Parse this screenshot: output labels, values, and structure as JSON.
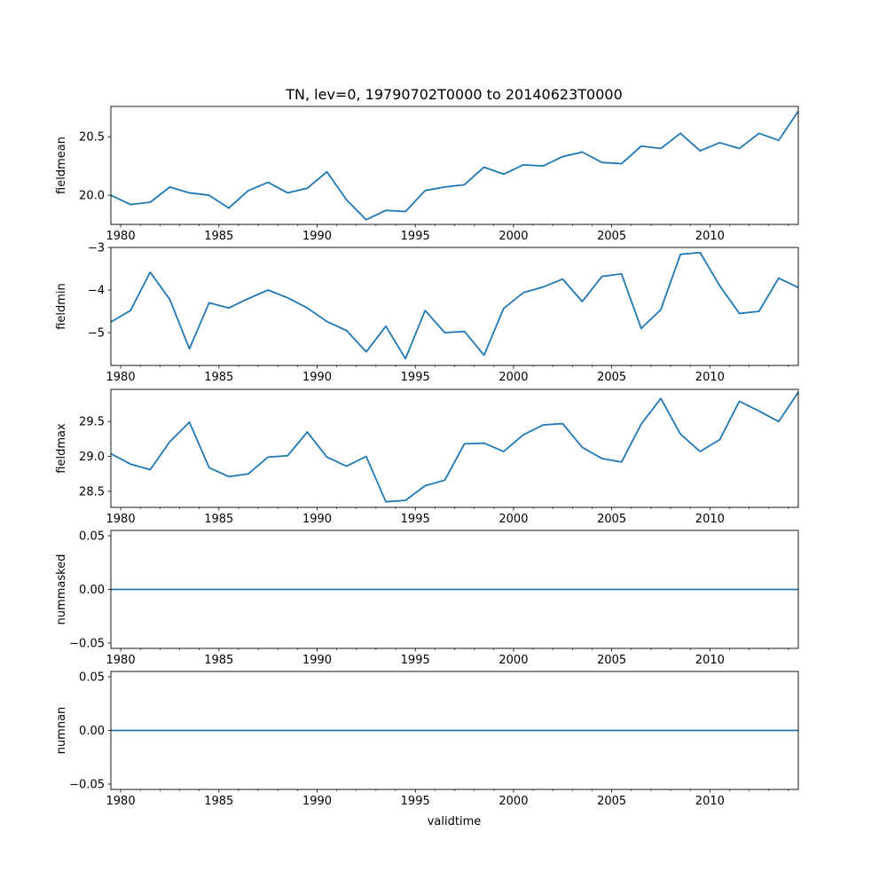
{
  "chart_data": {
    "type": "line",
    "title": "TN, lev=0, 19790702T0000 to 20140623T0000",
    "xlabel": "validtime",
    "xlim": [
      1979.5,
      2014.5
    ],
    "x_major_ticks": [
      1980,
      1985,
      1990,
      1995,
      2000,
      2005,
      2010
    ],
    "x_tick_labels": [
      "1980",
      "1985",
      "1990",
      "1995",
      "2000",
      "2005",
      "2010"
    ],
    "x": [
      1979.5,
      1980.5,
      1981.5,
      1982.5,
      1983.5,
      1984.5,
      1985.5,
      1986.5,
      1987.5,
      1988.5,
      1989.5,
      1990.5,
      1991.5,
      1992.5,
      1993.5,
      1994.5,
      1995.5,
      1996.5,
      1997.5,
      1998.5,
      1999.5,
      2000.5,
      2001.5,
      2002.5,
      2003.5,
      2004.5,
      2005.5,
      2006.5,
      2007.5,
      2008.5,
      2009.5,
      2010.5,
      2011.5,
      2012.5,
      2013.5,
      2014.5
    ],
    "color": "#1f77b4",
    "panels": [
      {
        "ylabel": "fieldmean",
        "ylim": [
          19.75,
          20.76
        ],
        "yticks": [
          20.0,
          20.5
        ],
        "ytick_labels": [
          "20.0",
          "20.5"
        ],
        "values": [
          20.0,
          19.92,
          19.94,
          20.07,
          20.02,
          20.0,
          19.89,
          20.04,
          20.11,
          20.02,
          20.06,
          20.2,
          19.96,
          19.79,
          19.87,
          19.86,
          20.04,
          20.07,
          20.09,
          20.24,
          20.18,
          20.26,
          20.25,
          20.33,
          20.37,
          20.28,
          20.27,
          20.42,
          20.4,
          20.53,
          20.38,
          20.45,
          20.4,
          20.53,
          20.47,
          20.72
        ]
      },
      {
        "ylabel": "fieldmin",
        "ylim": [
          -5.77,
          -3.0
        ],
        "yticks": [
          -5,
          -4,
          -3
        ],
        "ytick_labels": [
          "−5",
          "−4",
          "−3"
        ],
        "values": [
          -4.75,
          -4.48,
          -3.58,
          -4.22,
          -5.38,
          -4.3,
          -4.42,
          -4.2,
          -4.0,
          -4.18,
          -4.42,
          -4.74,
          -4.95,
          -5.45,
          -4.85,
          -5.61,
          -4.48,
          -5.0,
          -4.97,
          -5.53,
          -4.43,
          -4.06,
          -3.93,
          -3.74,
          -4.27,
          -3.68,
          -3.62,
          -4.9,
          -4.46,
          -3.16,
          -3.12,
          -3.9,
          -4.55,
          -4.5,
          -3.72,
          -3.94
        ]
      },
      {
        "ylabel": "fieldmax",
        "ylim": [
          28.27,
          29.96
        ],
        "yticks": [
          28.5,
          29.0,
          29.5
        ],
        "ytick_labels": [
          "28.5",
          "29.0",
          "29.5"
        ],
        "values": [
          29.04,
          28.89,
          28.81,
          29.21,
          29.49,
          28.84,
          28.71,
          28.75,
          28.99,
          29.01,
          29.35,
          28.99,
          28.86,
          29.0,
          28.35,
          28.37,
          28.58,
          28.66,
          29.18,
          29.19,
          29.07,
          29.31,
          29.45,
          29.47,
          29.13,
          28.97,
          28.92,
          29.46,
          29.83,
          29.32,
          29.07,
          29.24,
          29.79,
          29.65,
          29.5,
          29.92
        ]
      },
      {
        "ylabel": "nummasked",
        "ylim": [
          -0.055,
          0.055
        ],
        "yticks": [
          -0.05,
          0.0,
          0.05
        ],
        "ytick_labels": [
          "−0.05",
          "0.00",
          "0.05"
        ],
        "values": [
          0,
          0,
          0,
          0,
          0,
          0,
          0,
          0,
          0,
          0,
          0,
          0,
          0,
          0,
          0,
          0,
          0,
          0,
          0,
          0,
          0,
          0,
          0,
          0,
          0,
          0,
          0,
          0,
          0,
          0,
          0,
          0,
          0,
          0,
          0,
          0
        ]
      },
      {
        "ylabel": "numnan",
        "ylim": [
          -0.055,
          0.055
        ],
        "yticks": [
          -0.05,
          0.0,
          0.05
        ],
        "ytick_labels": [
          "−0.05",
          "0.00",
          "0.05"
        ],
        "values": [
          0,
          0,
          0,
          0,
          0,
          0,
          0,
          0,
          0,
          0,
          0,
          0,
          0,
          0,
          0,
          0,
          0,
          0,
          0,
          0,
          0,
          0,
          0,
          0,
          0,
          0,
          0,
          0,
          0,
          0,
          0,
          0,
          0,
          0,
          0,
          0
        ]
      }
    ]
  }
}
